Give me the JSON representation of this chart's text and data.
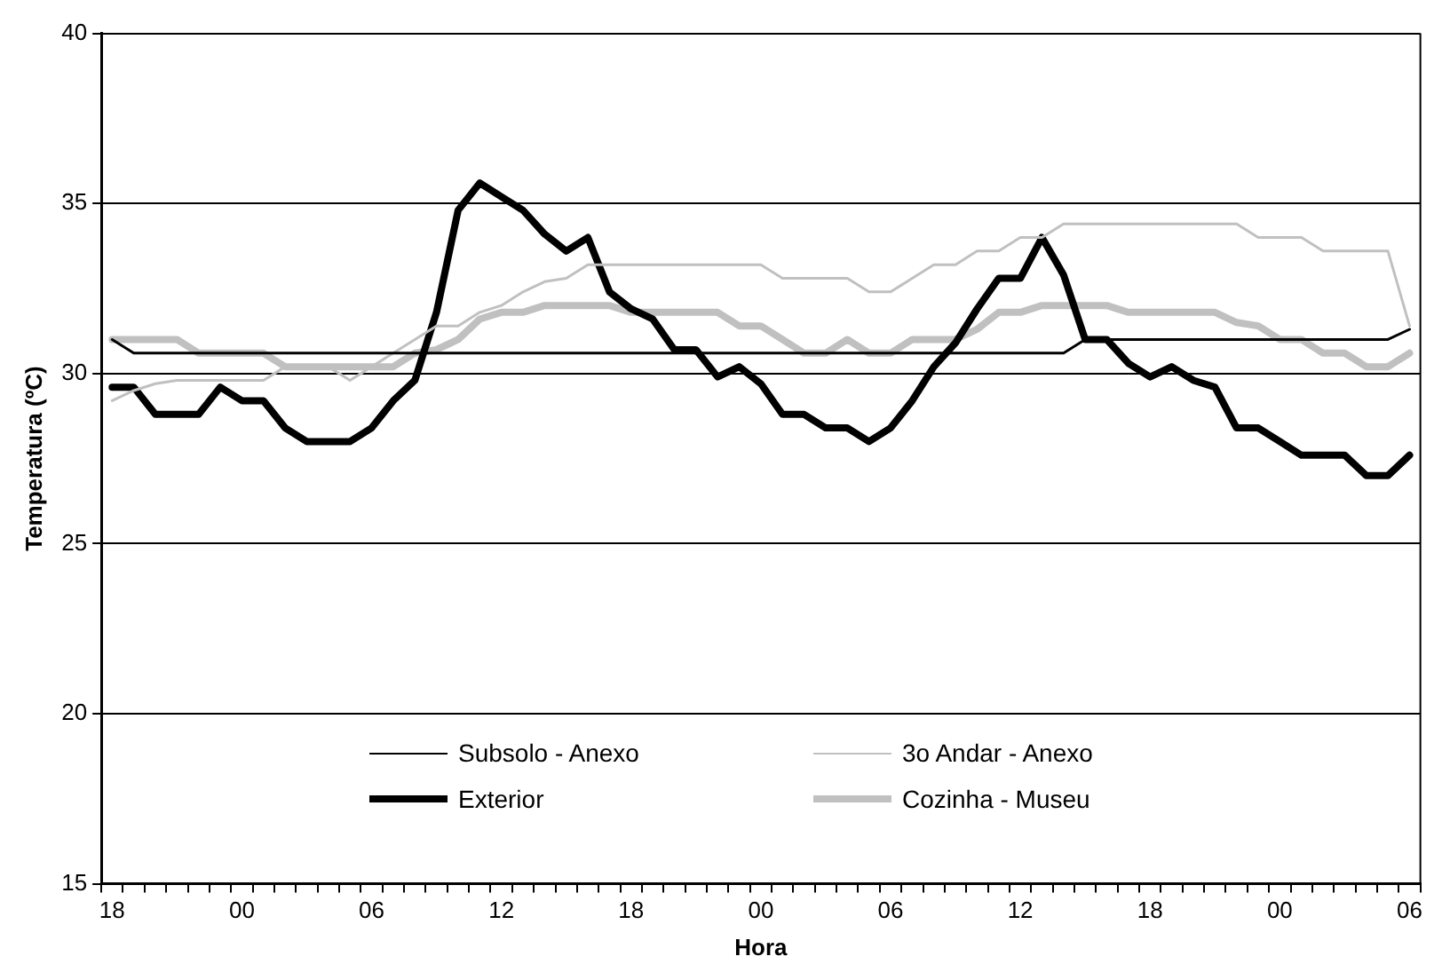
{
  "chart_data": {
    "type": "line",
    "xlabel": "Hora",
    "ylabel": "Temperatura (ºC)",
    "categories": [
      "18",
      null,
      null,
      null,
      null,
      null,
      "00",
      null,
      null,
      null,
      null,
      null,
      "06",
      null,
      null,
      null,
      null,
      null,
      "12",
      null,
      null,
      null,
      null,
      null,
      "18",
      null,
      null,
      null,
      null,
      null,
      "00",
      null,
      null,
      null,
      null,
      null,
      "06",
      null,
      null,
      null,
      null,
      null,
      "12",
      null,
      null,
      null,
      null,
      null,
      "18",
      null,
      null,
      null,
      null,
      null,
      "00",
      null,
      null,
      null,
      null,
      null,
      "06"
    ],
    "ylim": [
      15,
      40
    ],
    "yticks": [
      15,
      20,
      25,
      30,
      35,
      40
    ],
    "grid": "y",
    "legend": "bottom",
    "marker": "none",
    "line_style": "solid",
    "series": [
      {
        "name": "Subsolo - Anexo",
        "color": "#000000",
        "values": [
          31.0,
          30.6,
          30.6,
          30.6,
          30.6,
          30.6,
          30.6,
          30.6,
          30.6,
          30.6,
          30.6,
          30.6,
          30.6,
          30.6,
          30.6,
          30.6,
          30.6,
          30.6,
          30.6,
          30.6,
          30.6,
          30.6,
          30.6,
          30.6,
          30.6,
          30.6,
          30.6,
          30.6,
          30.6,
          30.6,
          30.6,
          30.6,
          30.6,
          30.6,
          30.6,
          30.6,
          30.6,
          30.6,
          30.6,
          30.6,
          30.6,
          30.6,
          30.6,
          30.6,
          30.6,
          31.0,
          31.0,
          31.0,
          31.0,
          31.0,
          31.0,
          31.0,
          31.0,
          31.0,
          31.0,
          31.0,
          31.0,
          31.0,
          31.0,
          31.0,
          31.3
        ]
      },
      {
        "name": "3o Andar - Anexo",
        "color": "#c0c0c0",
        "values": [
          29.2,
          29.5,
          29.7,
          29.8,
          29.8,
          29.8,
          29.8,
          29.8,
          30.2,
          30.2,
          30.2,
          29.8,
          30.2,
          30.6,
          31.0,
          31.4,
          31.4,
          31.8,
          32.0,
          32.4,
          32.7,
          32.8,
          33.2,
          33.2,
          33.2,
          33.2,
          33.2,
          33.2,
          33.2,
          33.2,
          33.2,
          32.8,
          32.8,
          32.8,
          32.8,
          32.4,
          32.4,
          32.8,
          33.2,
          33.2,
          33.6,
          33.6,
          34.0,
          34.0,
          34.4,
          34.4,
          34.4,
          34.4,
          34.4,
          34.4,
          34.4,
          34.4,
          34.4,
          34.0,
          34.0,
          34.0,
          33.6,
          33.6,
          33.6,
          33.6,
          31.4
        ]
      },
      {
        "name": "Exterior",
        "color": "#000000",
        "values": [
          29.6,
          29.6,
          28.8,
          28.8,
          28.8,
          29.6,
          29.2,
          29.2,
          28.4,
          28.0,
          28.0,
          28.0,
          28.4,
          29.2,
          29.8,
          31.8,
          34.8,
          35.6,
          35.2,
          34.8,
          34.1,
          33.6,
          34.0,
          32.4,
          31.9,
          31.6,
          30.7,
          30.7,
          29.9,
          30.2,
          29.7,
          28.8,
          28.8,
          28.4,
          28.4,
          28.0,
          28.4,
          29.2,
          30.2,
          30.9,
          31.9,
          32.8,
          32.8,
          34.0,
          32.9,
          31.0,
          31.0,
          30.3,
          29.9,
          30.2,
          29.8,
          29.6,
          28.4,
          28.4,
          28.0,
          27.6,
          27.6,
          27.6,
          27.0,
          27.0,
          27.6
        ]
      },
      {
        "name": "Cozinha - Museu",
        "color": "#c0c0c0",
        "values": [
          31.0,
          31.0,
          31.0,
          31.0,
          30.6,
          30.6,
          30.6,
          30.6,
          30.2,
          30.2,
          30.2,
          30.2,
          30.2,
          30.2,
          30.6,
          30.7,
          31.0,
          31.6,
          31.8,
          31.8,
          32.0,
          32.0,
          32.0,
          32.0,
          31.8,
          31.8,
          31.8,
          31.8,
          31.8,
          31.4,
          31.4,
          31.0,
          30.6,
          30.6,
          31.0,
          30.6,
          30.6,
          31.0,
          31.0,
          31.0,
          31.3,
          31.8,
          31.8,
          32.0,
          32.0,
          32.0,
          32.0,
          31.8,
          31.8,
          31.8,
          31.8,
          31.8,
          31.5,
          31.4,
          31.0,
          31.0,
          30.6,
          30.6,
          30.2,
          30.2,
          30.6
        ]
      }
    ]
  }
}
